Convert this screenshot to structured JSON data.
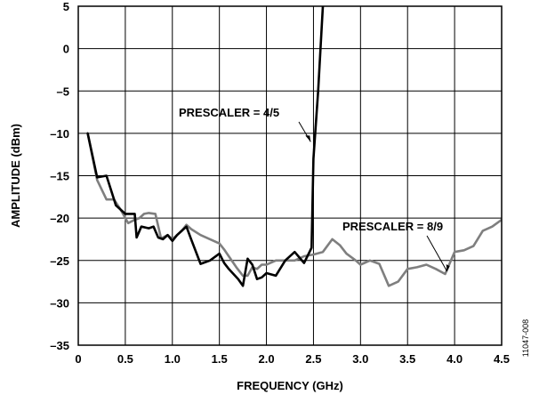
{
  "chart_data": {
    "type": "line",
    "xlabel": "FREQUENCY (GHz)",
    "ylabel": "AMPLITUDE (dBm)",
    "xlim": [
      0,
      4.5
    ],
    "ylim": [
      -35,
      5
    ],
    "xticks": [
      "0",
      "0.5",
      "1.0",
      "1.5",
      "2.0",
      "2.5",
      "3.0",
      "3.5",
      "4.0",
      "4.5"
    ],
    "yticks": [
      "5",
      "0",
      "–5",
      "–10",
      "–15",
      "–20",
      "–25",
      "–30",
      "–35"
    ],
    "grid": true,
    "figure_id": "11047-008",
    "series": [
      {
        "name": "PRESCALER = 8/9",
        "color": "#7f7f7f",
        "points": [
          [
            0.1,
            -10.0
          ],
          [
            0.2,
            -15.5
          ],
          [
            0.3,
            -17.8
          ],
          [
            0.38,
            -17.8
          ],
          [
            0.45,
            -19.0
          ],
          [
            0.53,
            -20.6
          ],
          [
            0.6,
            -20.2
          ],
          [
            0.65,
            -20.0
          ],
          [
            0.7,
            -19.5
          ],
          [
            0.75,
            -19.4
          ],
          [
            0.82,
            -19.5
          ],
          [
            0.88,
            -22.4
          ],
          [
            0.95,
            -22.0
          ],
          [
            1.0,
            -22.5
          ],
          [
            1.05,
            -22.0
          ],
          [
            1.1,
            -21.5
          ],
          [
            1.15,
            -20.8
          ],
          [
            1.2,
            -21.3
          ],
          [
            1.3,
            -22.0
          ],
          [
            1.4,
            -22.5
          ],
          [
            1.5,
            -23.0
          ],
          [
            1.55,
            -23.7
          ],
          [
            1.6,
            -24.5
          ],
          [
            1.68,
            -25.8
          ],
          [
            1.75,
            -26.8
          ],
          [
            1.8,
            -26.8
          ],
          [
            1.85,
            -25.8
          ],
          [
            1.9,
            -26.0
          ],
          [
            1.95,
            -25.5
          ],
          [
            2.0,
            -25.5
          ],
          [
            2.1,
            -25.0
          ],
          [
            2.2,
            -25.0
          ],
          [
            2.3,
            -25.0
          ],
          [
            2.4,
            -24.5
          ],
          [
            2.5,
            -24.3
          ],
          [
            2.6,
            -24.0
          ],
          [
            2.7,
            -22.5
          ],
          [
            2.78,
            -23.2
          ],
          [
            2.85,
            -24.2
          ],
          [
            2.95,
            -25.0
          ],
          [
            3.0,
            -25.5
          ],
          [
            3.1,
            -25.0
          ],
          [
            3.2,
            -25.4
          ],
          [
            3.3,
            -28.0
          ],
          [
            3.4,
            -27.5
          ],
          [
            3.5,
            -26.0
          ],
          [
            3.6,
            -25.8
          ],
          [
            3.7,
            -25.5
          ],
          [
            3.8,
            -26.0
          ],
          [
            3.9,
            -26.6
          ],
          [
            4.0,
            -24.0
          ],
          [
            4.1,
            -23.8
          ],
          [
            4.2,
            -23.3
          ],
          [
            4.3,
            -21.5
          ],
          [
            4.4,
            -21.0
          ],
          [
            4.5,
            -20.2
          ]
        ]
      },
      {
        "name": "PRESCALER = 4/5",
        "color": "#000000",
        "points": [
          [
            0.1,
            -10.0
          ],
          [
            0.2,
            -15.2
          ],
          [
            0.3,
            -15.0
          ],
          [
            0.4,
            -18.5
          ],
          [
            0.5,
            -19.5
          ],
          [
            0.6,
            -19.5
          ],
          [
            0.62,
            -22.3
          ],
          [
            0.67,
            -21.0
          ],
          [
            0.75,
            -21.2
          ],
          [
            0.8,
            -21.0
          ],
          [
            0.85,
            -22.3
          ],
          [
            0.9,
            -22.5
          ],
          [
            0.95,
            -22.0
          ],
          [
            1.0,
            -22.7
          ],
          [
            1.05,
            -22.0
          ],
          [
            1.1,
            -21.5
          ],
          [
            1.15,
            -21.0
          ],
          [
            1.2,
            -22.5
          ],
          [
            1.3,
            -25.4
          ],
          [
            1.4,
            -25.0
          ],
          [
            1.5,
            -24.2
          ],
          [
            1.55,
            -25.3
          ],
          [
            1.6,
            -26.0
          ],
          [
            1.7,
            -27.2
          ],
          [
            1.75,
            -28.0
          ],
          [
            1.8,
            -24.8
          ],
          [
            1.85,
            -25.5
          ],
          [
            1.9,
            -27.2
          ],
          [
            1.95,
            -27.0
          ],
          [
            2.0,
            -26.5
          ],
          [
            2.1,
            -26.8
          ],
          [
            2.2,
            -25.0
          ],
          [
            2.3,
            -24.0
          ],
          [
            2.4,
            -25.3
          ],
          [
            2.48,
            -23.5
          ],
          [
            2.5,
            -13.0
          ],
          [
            2.55,
            -5.0
          ],
          [
            2.6,
            5.0
          ]
        ]
      }
    ],
    "annotations": [
      {
        "text": "PRESCALER = 4/5",
        "points_to": [
          2.47,
          -11.0
        ]
      },
      {
        "text": "PRESCALER = 8/9",
        "points_to": [
          3.92,
          -26.3
        ]
      }
    ]
  }
}
